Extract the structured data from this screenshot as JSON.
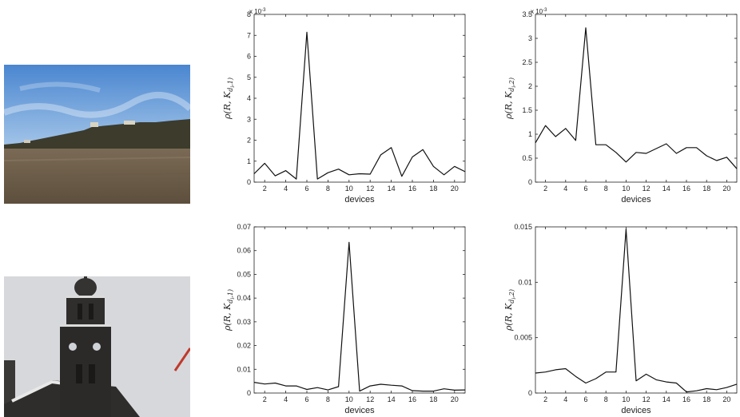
{
  "images": [
    {
      "name": "landscape-photo",
      "alt": ""
    },
    {
      "name": "tower-photo",
      "alt": ""
    }
  ],
  "chart_data": [
    {
      "type": "line",
      "xlabel": "devices",
      "ylabel_base": "ρ(R, K",
      "ylabel_sub": "d",
      "ylabel_subsub": "i",
      "ylabel_tail": ",1)",
      "exponent_label": "x 10",
      "exponent_power": "-3",
      "x": [
        1,
        2,
        3,
        4,
        5,
        6,
        7,
        8,
        9,
        10,
        11,
        12,
        13,
        14,
        15,
        16,
        17,
        18,
        19,
        20,
        21
      ],
      "series": [
        {
          "values": [
            0.4,
            0.9,
            0.3,
            0.55,
            0.15,
            7.15,
            0.15,
            0.45,
            0.62,
            0.35,
            0.4,
            0.38,
            1.3,
            1.65,
            0.28,
            1.2,
            1.55,
            0.75,
            0.35,
            0.75,
            0.5
          ]
        }
      ],
      "xlim": [
        1,
        21
      ],
      "ylim": [
        0,
        8
      ],
      "xticks": [
        2,
        4,
        6,
        8,
        10,
        12,
        14,
        16,
        18,
        20
      ],
      "yticks": [
        0,
        1,
        2,
        3,
        4,
        5,
        6,
        7,
        8
      ],
      "ytick_labels": [
        "0",
        "1",
        "2",
        "3",
        "4",
        "5",
        "6",
        "7",
        "8"
      ],
      "grid": false
    },
    {
      "type": "line",
      "xlabel": "devices",
      "ylabel_base": "ρ(R, K",
      "ylabel_sub": "d",
      "ylabel_subsub": "i",
      "ylabel_tail": ",2)",
      "exponent_label": "x 10",
      "exponent_power": "-3",
      "x": [
        1,
        2,
        3,
        4,
        5,
        6,
        7,
        8,
        9,
        10,
        11,
        12,
        13,
        14,
        15,
        16,
        17,
        18,
        19,
        20,
        21
      ],
      "series": [
        {
          "values": [
            0.82,
            1.18,
            0.95,
            1.12,
            0.87,
            3.22,
            0.78,
            0.78,
            0.62,
            0.42,
            0.62,
            0.6,
            0.7,
            0.8,
            0.6,
            0.72,
            0.72,
            0.55,
            0.45,
            0.52,
            0.28
          ]
        }
      ],
      "xlim": [
        1,
        21
      ],
      "ylim": [
        0,
        3.5
      ],
      "xticks": [
        2,
        4,
        6,
        8,
        10,
        12,
        14,
        16,
        18,
        20
      ],
      "yticks": [
        0,
        0.5,
        1,
        1.5,
        2,
        2.5,
        3,
        3.5
      ],
      "ytick_labels": [
        "0",
        "0.5",
        "1",
        "1.5",
        "2",
        "2.5",
        "3",
        "3.5"
      ],
      "grid": false
    },
    {
      "type": "line",
      "xlabel": "devices",
      "ylabel_base": "ρ(R, K",
      "ylabel_sub": "d",
      "ylabel_subsub": "i",
      "ylabel_tail": ",1)",
      "exponent_label": "",
      "exponent_power": "",
      "x": [
        1,
        2,
        3,
        4,
        5,
        6,
        7,
        8,
        9,
        10,
        11,
        12,
        13,
        14,
        15,
        16,
        17,
        18,
        19,
        20,
        21
      ],
      "series": [
        {
          "values": [
            0.0045,
            0.0038,
            0.0042,
            0.003,
            0.003,
            0.0015,
            0.0023,
            0.0013,
            0.0027,
            0.0635,
            0.0008,
            0.003,
            0.0037,
            0.0033,
            0.003,
            0.001,
            0.0008,
            0.0008,
            0.0018,
            0.0012,
            0.0013
          ]
        }
      ],
      "xlim": [
        1,
        21
      ],
      "ylim": [
        0,
        0.07
      ],
      "xticks": [
        2,
        4,
        6,
        8,
        10,
        12,
        14,
        16,
        18,
        20
      ],
      "yticks": [
        0,
        0.01,
        0.02,
        0.03,
        0.04,
        0.05,
        0.06,
        0.07
      ],
      "ytick_labels": [
        "0",
        "0.01",
        "0.02",
        "0.03",
        "0.04",
        "0.05",
        "0.06",
        "0.07"
      ],
      "grid": false
    },
    {
      "type": "line",
      "xlabel": "devices",
      "ylabel_base": "ρ(R, K",
      "ylabel_sub": "d",
      "ylabel_subsub": "i",
      "ylabel_tail": ",2)",
      "exponent_label": "",
      "exponent_power": "",
      "x": [
        1,
        2,
        3,
        4,
        5,
        6,
        7,
        8,
        9,
        10,
        11,
        12,
        13,
        14,
        15,
        16,
        17,
        18,
        19,
        20,
        21
      ],
      "series": [
        {
          "values": [
            0.0018,
            0.0019,
            0.0021,
            0.0022,
            0.0015,
            0.0009,
            0.0013,
            0.0019,
            0.0019,
            0.0148,
            0.0011,
            0.0017,
            0.0012,
            0.001,
            0.0009,
            0.0001,
            0.0002,
            0.0004,
            0.0003,
            0.0005,
            0.0008
          ]
        }
      ],
      "xlim": [
        1,
        21
      ],
      "ylim": [
        0,
        0.015
      ],
      "xticks": [
        2,
        4,
        6,
        8,
        10,
        12,
        14,
        16,
        18,
        20
      ],
      "yticks": [
        0,
        0.005,
        0.01,
        0.015
      ],
      "ytick_labels": [
        "0",
        "0.005",
        "0.01",
        "0.015"
      ],
      "grid": false
    }
  ]
}
